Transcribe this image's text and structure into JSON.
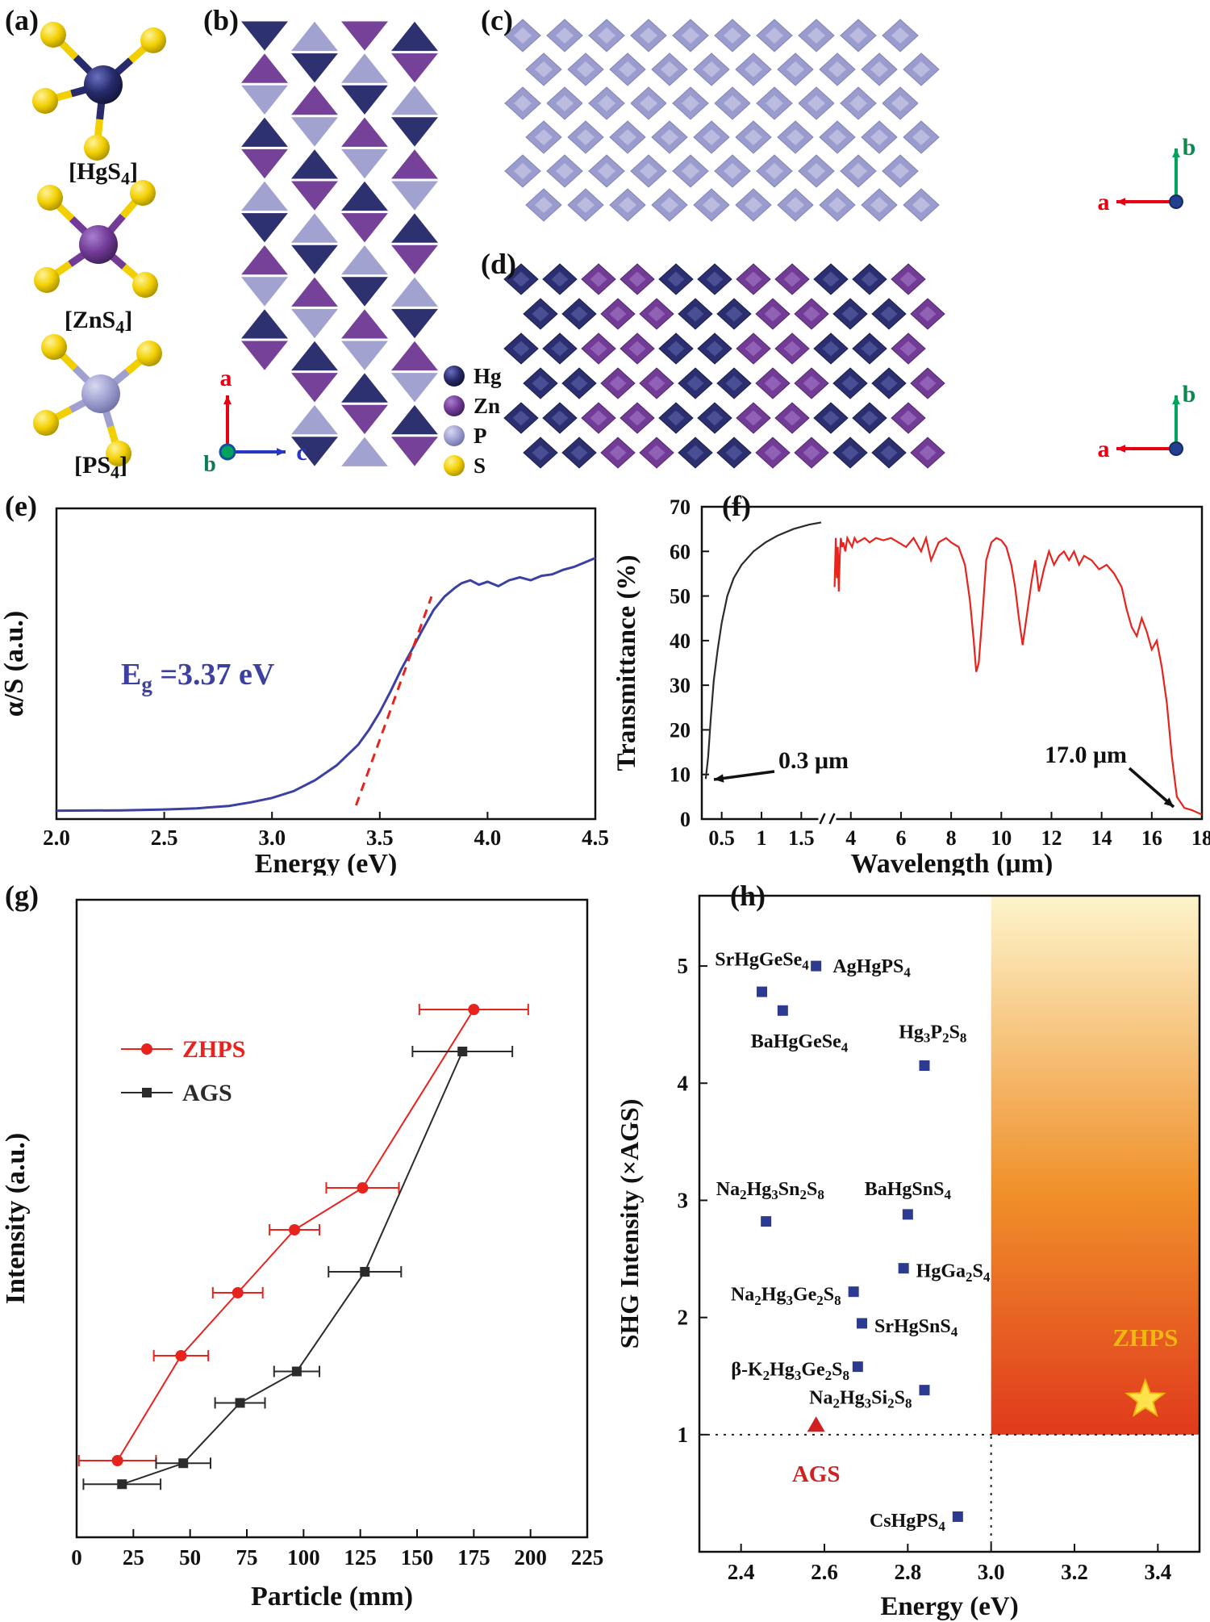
{
  "figure": {
    "panel_labels": {
      "a": "(a)",
      "b": "(b)",
      "c": "(c)",
      "d": "(d)",
      "e": "(e)",
      "f": "(f)",
      "g": "(g)",
      "h": "(h)"
    }
  },
  "colors": {
    "navy": {
      "base": "#272b6b",
      "light": "#6a6fc0",
      "dark": "#121435",
      "edge": "#1a1d4e"
    },
    "purple": {
      "base": "#713b96",
      "light": "#a97fd0",
      "dark": "#3f1f58",
      "edge": "#552c72"
    },
    "lavender": {
      "base": "#9fa0d0",
      "light": "#d9d9f2",
      "dark": "#6f70a8",
      "edge": "#8586bd"
    },
    "yellow": {
      "base": "#f2cf00",
      "light": "#fff39a",
      "dark": "#a88f00",
      "edge": "#c7a900"
    },
    "axis_a_red": "#e60012",
    "axis_c_blue": "#2637c8",
    "axis_b_green": "#00a45a",
    "origin_dot_blue": "#23408f"
  },
  "panel_a": {
    "molecules": [
      {
        "label": "[HgS4]",
        "atom": "navy"
      },
      {
        "label": "[ZnS4]",
        "atom": "purple"
      },
      {
        "label": "[PS4]",
        "atom": "lavender"
      }
    ]
  },
  "panel_b": {
    "axes": {
      "up": "a",
      "right": "c",
      "origin": "b"
    }
  },
  "legend": {
    "items": [
      {
        "label": "Hg",
        "color": "navy"
      },
      {
        "label": "Zn",
        "color": "purple"
      },
      {
        "label": "P",
        "color": "lavender"
      },
      {
        "label": "S",
        "color": "yellow"
      }
    ]
  },
  "panel_c": {
    "axes": {
      "up": "b",
      "left": "a"
    },
    "diamond": {
      "base": "#9b9cce",
      "light": "#cdcdea",
      "edge": "#8182bb"
    }
  },
  "panel_d": {
    "axes": {
      "up": "b",
      "left": "a"
    },
    "diamond_navy": {
      "base": "#2b2f70",
      "light": "#5a5fa8",
      "edge": "#1c1f50"
    },
    "diamond_purple": {
      "base": "#713b96",
      "light": "#a377c6",
      "edge": "#542a73"
    }
  },
  "chart_data": [
    {
      "id": "e",
      "type": "line",
      "xlabel": "Energy (eV)",
      "ylabel": "α/S (a.u.)",
      "xlim": [
        2.0,
        4.5
      ],
      "xticks": [
        "2.0",
        "2.5",
        "3.0",
        "3.5",
        "4.0",
        "4.5"
      ],
      "band_gap": {
        "prefix": "E",
        "sub": "g",
        "rest": " =3.37 eV",
        "value_eV": 3.37,
        "color": "#3c40a0"
      },
      "series": [
        {
          "name": "absorption",
          "color": "#3c40a0",
          "x": [
            2.0,
            2.3,
            2.5,
            2.65,
            2.8,
            2.9,
            3.0,
            3.1,
            3.2,
            3.3,
            3.4,
            3.45,
            3.5,
            3.55,
            3.6,
            3.65,
            3.7,
            3.75,
            3.8,
            3.85,
            3.88,
            3.92,
            3.96,
            4.0,
            4.05,
            4.1,
            4.15,
            4.2,
            4.25,
            4.3,
            4.35,
            4.4,
            4.45,
            4.5
          ],
          "y": [
            0.012,
            0.013,
            0.016,
            0.02,
            0.028,
            0.04,
            0.055,
            0.078,
            0.115,
            0.165,
            0.235,
            0.285,
            0.345,
            0.415,
            0.49,
            0.557,
            0.625,
            0.69,
            0.735,
            0.765,
            0.78,
            0.79,
            0.775,
            0.785,
            0.77,
            0.79,
            0.8,
            0.79,
            0.805,
            0.81,
            0.825,
            0.835,
            0.85,
            0.865
          ]
        },
        {
          "name": "tauc-extrapolation",
          "color": "#e8231e",
          "dashed": true,
          "x": [
            3.39,
            3.74
          ],
          "y": [
            0.03,
            0.735
          ]
        }
      ]
    },
    {
      "id": "f",
      "type": "line",
      "xlabel": "Wavelength (μm)",
      "ylabel": "Transmittance (%)",
      "ylim": [
        0,
        70
      ],
      "yticks": [
        0,
        10,
        20,
        30,
        40,
        50,
        60,
        70
      ],
      "axis_break": {
        "seg1_lim": [
          0.25,
          1.75
        ],
        "seg2_lim": [
          3.3,
          18
        ],
        "seg1_ticks": [
          "0.5",
          "1",
          "1.5"
        ],
        "seg2_ticks": [
          "4",
          "6",
          "8",
          "10",
          "12",
          "14",
          "16",
          "18"
        ]
      },
      "annotations": [
        {
          "text": "0.3 μm"
        },
        {
          "text": "17.0 μm"
        }
      ],
      "series": [
        {
          "name": "UV-vis edge",
          "color": "#2b2b2b",
          "x": [
            0.3,
            0.33,
            0.36,
            0.4,
            0.45,
            0.5,
            0.57,
            0.65,
            0.75,
            0.9,
            1.05,
            1.2,
            1.4,
            1.6,
            1.75
          ],
          "y": [
            9,
            14,
            22,
            31,
            38,
            44,
            50,
            54,
            57,
            60,
            62,
            63.5,
            65,
            66,
            66.5
          ]
        },
        {
          "name": "IR transmittance",
          "color": "#e8231e",
          "x": [
            3.35,
            3.4,
            3.44,
            3.48,
            3.52,
            3.56,
            3.6,
            3.65,
            3.7,
            3.78,
            3.86,
            3.95,
            4.05,
            4.15,
            4.25,
            4.4,
            4.55,
            4.75,
            5.0,
            5.3,
            5.6,
            5.9,
            6.2,
            6.5,
            6.8,
            7.0,
            7.2,
            7.5,
            7.8,
            8.0,
            8.3,
            8.55,
            8.75,
            8.9,
            9.0,
            9.1,
            9.25,
            9.4,
            9.6,
            9.8,
            10.0,
            10.2,
            10.4,
            10.55,
            10.7,
            10.85,
            11.0,
            11.2,
            11.35,
            11.5,
            11.7,
            11.9,
            12.1,
            12.3,
            12.5,
            12.7,
            12.9,
            13.1,
            13.3,
            13.6,
            13.9,
            14.2,
            14.5,
            14.8,
            15.0,
            15.2,
            15.4,
            15.6,
            15.8,
            16.0,
            16.2,
            16.4,
            16.6,
            16.8,
            17.0,
            17.3,
            17.6,
            18.0
          ],
          "y": [
            52,
            63,
            54,
            61,
            51,
            59,
            63,
            61,
            62,
            60,
            63,
            62,
            61,
            63,
            62,
            62.5,
            63,
            62,
            63,
            62.5,
            63,
            62,
            61,
            63,
            60,
            63,
            58,
            62,
            63,
            62,
            61,
            57,
            49,
            40,
            33,
            35,
            46,
            58,
            62,
            63,
            62.5,
            61,
            57,
            52,
            45,
            39,
            45,
            53,
            58,
            51,
            56,
            60,
            57,
            59,
            60,
            58,
            60,
            57,
            59,
            58,
            56,
            57,
            55,
            52,
            47,
            43,
            41,
            45,
            42,
            38,
            40,
            34,
            26,
            14,
            5,
            2.5,
            2,
            1
          ]
        }
      ]
    },
    {
      "id": "g",
      "type": "line-scatter",
      "xlabel": "Particle (mm)",
      "ylabel": "Intensity (a.u.)",
      "xlim": [
        0,
        225
      ],
      "xticks": [
        0,
        25,
        50,
        75,
        100,
        125,
        150,
        175,
        200,
        225
      ],
      "series": [
        {
          "name": "ZHPS",
          "color": "#e8231e",
          "marker": "circle",
          "x": [
            18,
            46,
            71,
            96,
            126,
            175
          ],
          "y": [
            0.1,
            0.3,
            0.42,
            0.54,
            0.62,
            0.96
          ],
          "xerr": [
            17,
            12,
            11,
            11,
            16,
            24
          ]
        },
        {
          "name": "AGS",
          "color": "#2b2b2b",
          "marker": "square",
          "x": [
            20,
            47,
            72,
            97,
            127,
            170
          ],
          "y": [
            0.055,
            0.095,
            0.21,
            0.27,
            0.46,
            0.88
          ],
          "xerr": [
            17,
            12,
            11,
            10,
            16,
            22
          ]
        }
      ]
    },
    {
      "id": "h",
      "type": "scatter",
      "xlabel": "Energy (eV)",
      "ylabel": "SHG Intensity (×AGS)",
      "xlim": [
        2.3,
        3.5
      ],
      "xticks": [
        "2.4",
        "2.6",
        "2.8",
        "3.0",
        "3.2",
        "3.4"
      ],
      "ylim": [
        0,
        5.6
      ],
      "yticks": [
        1,
        2,
        3,
        4,
        5
      ],
      "marker_color": "#2c3a90",
      "ref_lines": {
        "horizontal_y": 1.0,
        "vertical_x": 3.0
      },
      "region": {
        "x0": 3.0,
        "y0": 1.0,
        "gradient_bottom": "#e03a1c",
        "gradient_mid": "#f0902a",
        "gradient_top": "#fdf4cb"
      },
      "points": [
        {
          "label": "SrHgGeSe4",
          "x": 2.45,
          "y": 4.78,
          "lx": 2.45,
          "ly": 5.06,
          "anchor": "middle"
        },
        {
          "label": "AgHgPS4",
          "x": 2.58,
          "y": 5.0,
          "lx": 2.62,
          "ly": 5.0,
          "anchor": "start"
        },
        {
          "label": "BaHgGeSe4",
          "x": 2.5,
          "y": 4.62,
          "lx": 2.54,
          "ly": 4.36,
          "anchor": "middle"
        },
        {
          "label": "Hg3P2S8",
          "x": 2.84,
          "y": 4.15,
          "lx": 2.86,
          "ly": 4.44,
          "anchor": "middle"
        },
        {
          "label": "Na2Hg3Sn2S8",
          "x": 2.46,
          "y": 2.82,
          "lx": 2.47,
          "ly": 3.1,
          "anchor": "middle"
        },
        {
          "label": "BaHgSnS4",
          "x": 2.8,
          "y": 2.88,
          "lx": 2.8,
          "ly": 3.1,
          "anchor": "middle"
        },
        {
          "label": "HgGa2S4",
          "x": 2.79,
          "y": 2.42,
          "lx": 2.82,
          "ly": 2.4,
          "anchor": "start"
        },
        {
          "label": "Na2Hg3Ge2S8",
          "x": 2.67,
          "y": 2.22,
          "lx": 2.64,
          "ly": 2.2,
          "anchor": "end"
        },
        {
          "label": "SrHgSnS4",
          "x": 2.69,
          "y": 1.95,
          "lx": 2.72,
          "ly": 1.93,
          "anchor": "start"
        },
        {
          "label": "β-K2Hg3Ge2S8",
          "x": 2.68,
          "y": 1.58,
          "lx": 2.66,
          "ly": 1.56,
          "anchor": "end"
        },
        {
          "label": "Na2Hg3Si2S8",
          "x": 2.84,
          "y": 1.38,
          "lx": 2.81,
          "ly": 1.32,
          "anchor": "end"
        },
        {
          "label": "CsHgPS4",
          "x": 2.92,
          "y": 0.3,
          "lx": 2.89,
          "ly": 0.27,
          "anchor": "end"
        }
      ],
      "special": [
        {
          "label": "AGS",
          "marker": "triangle",
          "color": "#d21f1f",
          "x": 2.58,
          "y": 1.08,
          "lx": 2.58,
          "ly": 0.66
        },
        {
          "label": "ZHPS",
          "marker": "star",
          "color": "#f0b80f",
          "fill": "#ffe34d",
          "x": 3.37,
          "y": 1.3,
          "lx": 3.37,
          "ly": 1.82
        }
      ]
    }
  ]
}
